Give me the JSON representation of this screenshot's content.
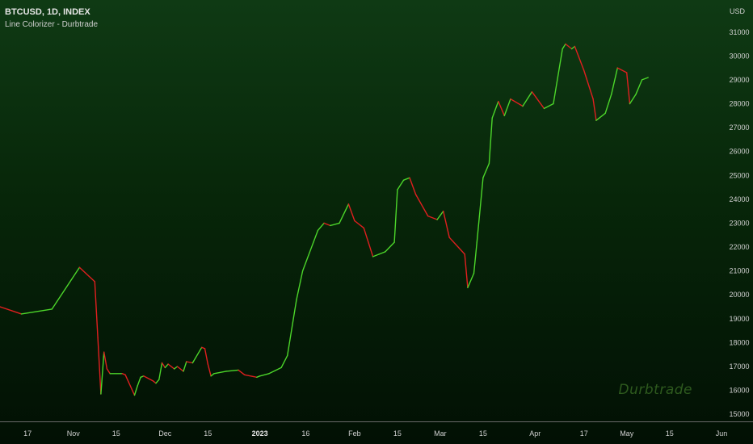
{
  "header": {
    "title": "BTCUSD, 1D, INDEX",
    "subtitle": "Line Colorizer - Durbtrade",
    "currency": "USD"
  },
  "watermark": "Durbtrade",
  "colors": {
    "up": "#4cd62a",
    "down": "#e01f1f",
    "axis_line": "#6a6a6a",
    "tick_text": "#cfcfcf"
  },
  "chart_data": {
    "type": "line",
    "y_unit": "USD",
    "x": [
      "2022-10-08",
      "2022-10-15",
      "2022-10-25",
      "2022-11-03",
      "2022-11-08",
      "2022-11-09",
      "2022-11-10",
      "2022-11-11",
      "2022-11-12",
      "2022-11-13",
      "2022-11-17",
      "2022-11-18",
      "2022-11-21",
      "2022-11-22",
      "2022-11-23",
      "2022-11-24",
      "2022-11-27",
      "2022-11-28",
      "2022-11-29",
      "2022-11-30",
      "2022-12-01",
      "2022-12-02",
      "2022-12-04",
      "2022-12-05",
      "2022-12-07",
      "2022-12-08",
      "2022-12-10",
      "2022-12-13",
      "2022-12-14",
      "2022-12-15",
      "2022-12-16",
      "2022-12-17",
      "2022-12-21",
      "2022-12-25",
      "2022-12-27",
      "2022-12-31",
      "2023-01-01",
      "2023-01-04",
      "2023-01-08",
      "2023-01-10",
      "2023-01-13",
      "2023-01-15",
      "2023-01-20",
      "2023-01-22",
      "2023-01-24",
      "2023-01-27",
      "2023-01-30",
      "2023-02-01",
      "2023-02-04",
      "2023-02-07",
      "2023-02-09",
      "2023-02-11",
      "2023-02-14",
      "2023-02-15",
      "2023-02-17",
      "2023-02-19",
      "2023-02-21",
      "2023-02-25",
      "2023-02-28",
      "2023-03-02",
      "2023-03-04",
      "2023-03-09",
      "2023-03-10",
      "2023-03-12",
      "2023-03-13",
      "2023-03-15",
      "2023-03-17",
      "2023-03-18",
      "2023-03-20",
      "2023-03-22",
      "2023-03-24",
      "2023-03-28",
      "2023-03-31",
      "2023-04-04",
      "2023-04-07",
      "2023-04-10",
      "2023-04-11",
      "2023-04-13",
      "2023-04-14",
      "2023-04-17",
      "2023-04-20",
      "2023-04-21",
      "2023-04-24",
      "2023-04-26",
      "2023-04-28",
      "2023-05-01",
      "2023-05-02",
      "2023-05-04",
      "2023-05-06",
      "2023-05-08"
    ],
    "y": [
      19500,
      19200,
      19400,
      21150,
      20550,
      18200,
      15850,
      17600,
      16900,
      16700,
      16700,
      16650,
      15800,
      16200,
      16550,
      16600,
      16400,
      16300,
      16450,
      17150,
      16950,
      17100,
      16900,
      17000,
      16800,
      17200,
      17150,
      17800,
      17750,
      17100,
      16600,
      16700,
      16800,
      16850,
      16650,
      16550,
      16600,
      16700,
      16950,
      17450,
      19800,
      21000,
      22700,
      23000,
      22900,
      23000,
      23800,
      23100,
      22800,
      21600,
      21700,
      21800,
      22200,
      24400,
      24800,
      24900,
      24200,
      23300,
      23150,
      23500,
      22400,
      21700,
      20300,
      20900,
      22200,
      24900,
      25500,
      27400,
      28100,
      27500,
      28200,
      27900,
      28500,
      27800,
      28000,
      30300,
      30500,
      30300,
      30400,
      29400,
      28200,
      27300,
      27600,
      28400,
      29500,
      29300,
      28000,
      28400,
      29000,
      29100
    ],
    "ylim": [
      14700,
      31600
    ],
    "yticks": [
      15000,
      16000,
      17000,
      18000,
      19000,
      20000,
      21000,
      22000,
      23000,
      24000,
      25000,
      26000,
      27000,
      28000,
      29000,
      30000,
      31000
    ],
    "xticks": [
      {
        "label": "17",
        "date": "2022-10-17"
      },
      {
        "label": "Nov",
        "date": "2022-11-01"
      },
      {
        "label": "15",
        "date": "2022-11-15"
      },
      {
        "label": "Dec",
        "date": "2022-12-01"
      },
      {
        "label": "15",
        "date": "2022-12-15"
      },
      {
        "label": "2023",
        "date": "2023-01-01"
      },
      {
        "label": "16",
        "date": "2023-01-16"
      },
      {
        "label": "Feb",
        "date": "2023-02-01"
      },
      {
        "label": "15",
        "date": "2023-02-15"
      },
      {
        "label": "Mar",
        "date": "2023-03-01"
      },
      {
        "label": "15",
        "date": "2023-03-15"
      },
      {
        "label": "Apr",
        "date": "2023-04-01"
      },
      {
        "label": "17",
        "date": "2023-04-17"
      },
      {
        "label": "May",
        "date": "2023-05-01"
      },
      {
        "label": "15",
        "date": "2023-05-15"
      },
      {
        "label": "Jun",
        "date": "2023-06-01"
      }
    ],
    "xlim": [
      "2022-10-08",
      "2023-06-01"
    ],
    "colorizer": "green when price rises, red when price falls",
    "grid": false,
    "legend": "none"
  }
}
